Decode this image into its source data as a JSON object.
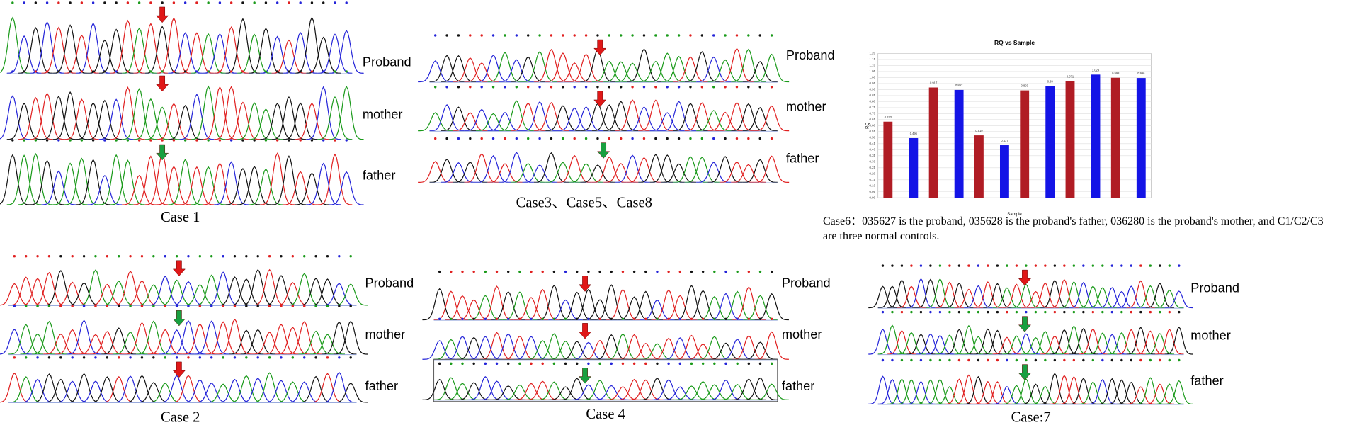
{
  "panels": [
    {
      "title": "Case 1",
      "rows": [
        "Proband",
        "mother",
        "father"
      ]
    },
    {
      "title": "Case3、Case5、Case8",
      "rows": [
        "Proband",
        "mother",
        "father"
      ]
    },
    {
      "title": "Case 2",
      "rows": [
        "Proband",
        "mother",
        "father"
      ]
    },
    {
      "title": "Case 4",
      "rows": [
        "Proband",
        "mother",
        "father"
      ]
    },
    {
      "title": "Case:7",
      "rows": [
        "Proband",
        "mother",
        "father"
      ]
    }
  ],
  "chart_data": {
    "type": "bar",
    "title": "RQ vs Sample",
    "y_label": "RQ",
    "x_label": "Sample",
    "categories": [
      null,
      null,
      null,
      null,
      null,
      null
    ],
    "series": [
      {
        "color": "#b01c24",
        "values": [
          0.633,
          0.917,
          0.519,
          0.893,
          0.971,
          0.998
        ]
      },
      {
        "color": "#1414e6",
        "values": [
          0.496,
          0.897,
          0.437,
          0.93,
          1.024,
          0.996
        ]
      }
    ],
    "ylim": [
      0,
      1.2
    ],
    "yticks": [
      {
        "value": 0,
        "label": "0.00"
      },
      0.05,
      {
        "value": 0.1,
        "label": "0.10"
      },
      0.15,
      {
        "value": 0.2,
        "label": "0.20"
      },
      0.25,
      {
        "value": 0.3,
        "label": "0.30"
      },
      0.35,
      {
        "value": 0.4,
        "label": "0.40"
      },
      0.45,
      {
        "value": 0.5,
        "label": "0.50"
      },
      0.55,
      {
        "value": 0.6,
        "label": "0.60"
      },
      0.65,
      {
        "value": 0.7,
        "label": "0.70"
      },
      0.75,
      {
        "value": 0.8,
        "label": "0.80"
      },
      0.85,
      {
        "value": 0.9,
        "label": "0.90"
      },
      0.95,
      {
        "value": 1,
        "label": "1.00"
      },
      1.05,
      {
        "value": 1.1,
        "label": "1.10"
      },
      1.15,
      {
        "value": 1.2,
        "label": "1.20"
      }
    ],
    "grid": true
  },
  "caption": "Case6：035627 is the proband, 035628 is the proband's father, 036280 is the proband's mother, and C1/C2/C3 are three normal controls."
}
